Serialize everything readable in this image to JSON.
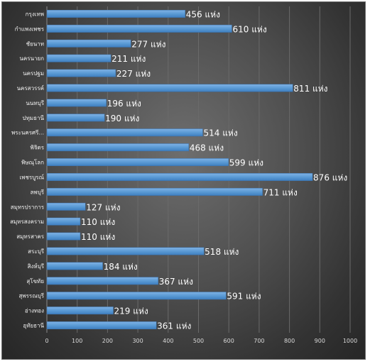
{
  "chart_data": {
    "type": "bar",
    "orientation": "horizontal",
    "title": "",
    "xlabel": "",
    "ylabel": "",
    "xlim": [
      0,
      1000
    ],
    "xticks": [
      0,
      100,
      200,
      300,
      400,
      500,
      600,
      700,
      800,
      900,
      1000
    ],
    "grid": true,
    "legend": "none",
    "unit_suffix": "แห่ง",
    "bar_color": "#5b9bd5",
    "categories": [
      "กรุงเทพ",
      "กำแพงเพชร",
      "ชัยนาท",
      "นครนายก",
      "นครปฐม",
      "นครสวรรค์",
      "นนทบุรี",
      "ปทุมธานี",
      "พระนครศรี...",
      "พิจิตร",
      "พิษณุโลก",
      "เพชรบูรณ์",
      "ลพบุรี",
      "สมุทรปราการ",
      "สมุทรสงคราม",
      "สมุทรสาคร",
      "สระบุรี",
      "สิงห์บุรี",
      "สุโขทัย",
      "สุพรรณบุรี",
      "อ่างทอง",
      "อุทัยธานี"
    ],
    "values": [
      456,
      610,
      277,
      211,
      227,
      811,
      196,
      190,
      514,
      468,
      599,
      876,
      711,
      127,
      110,
      110,
      518,
      184,
      367,
      591,
      219,
      361
    ],
    "data_labels": [
      "456 แห่ง",
      "610 แห่ง",
      "277 แห่ง",
      "211 แห่ง",
      "227 แห่ง",
      "811 แห่ง",
      "196 แห่ง",
      "190 แห่ง",
      "514 แห่ง",
      "468 แห่ง",
      "599 แห่ง",
      "876 แห่ง",
      "711 แห่ง",
      "127 แห่ง",
      "110 แห่ง",
      "110 แห่ง",
      "518 แห่ง",
      "184 แห่ง",
      "367 แห่ง",
      "591 แห่ง",
      "219 แห่ง",
      "361 แห่ง"
    ]
  }
}
